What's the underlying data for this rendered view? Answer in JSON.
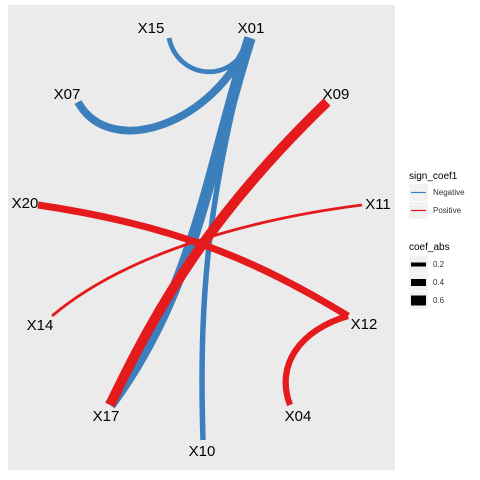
{
  "chart_data": {
    "type": "network",
    "title": "",
    "xlabel": "",
    "ylabel": "",
    "grid": false,
    "panel_background": "#ebebeb",
    "nodes": [
      "X01",
      "X04",
      "X07",
      "X09",
      "X10",
      "X11",
      "X12",
      "X14",
      "X15",
      "X17",
      "X20"
    ],
    "edges": [
      {
        "from": "X01",
        "to": "X15",
        "sign": "Negative",
        "coef_abs": 0.25
      },
      {
        "from": "X01",
        "to": "X07",
        "sign": "Negative",
        "coef_abs": 0.45
      },
      {
        "from": "X01",
        "to": "X17",
        "sign": "Negative",
        "coef_abs": 0.7
      },
      {
        "from": "X01",
        "to": "X10",
        "sign": "Negative",
        "coef_abs": 0.3
      },
      {
        "from": "X09",
        "to": "X17",
        "sign": "Positive",
        "coef_abs": 0.6
      },
      {
        "from": "X20",
        "to": "X12",
        "sign": "Positive",
        "coef_abs": 0.4
      },
      {
        "from": "X14",
        "to": "X11",
        "sign": "Positive",
        "coef_abs": 0.12
      },
      {
        "from": "X12",
        "to": "X04",
        "sign": "Positive",
        "coef_abs": 0.35
      }
    ],
    "legend_color": {
      "title": "sign_coef1",
      "placement": "right",
      "entries": [
        {
          "label": "Negative",
          "color": "#3c7fbd"
        },
        {
          "label": "Positive",
          "color": "#e41a1c"
        }
      ]
    },
    "legend_size": {
      "title": "coef_abs",
      "placement": "right",
      "entries": [
        {
          "label": "0.2",
          "value": 0.2
        },
        {
          "label": "0.4",
          "value": 0.4
        },
        {
          "label": "0.6",
          "value": 0.6
        }
      ]
    }
  }
}
